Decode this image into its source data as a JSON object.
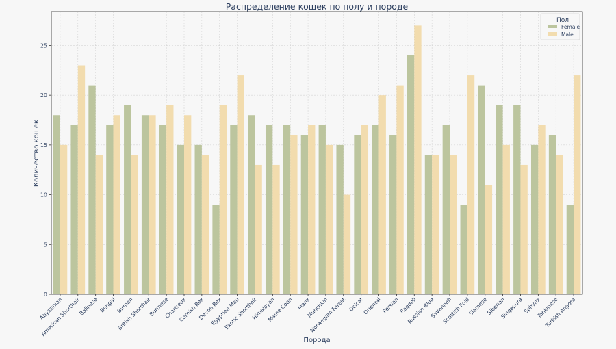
{
  "chart_data": {
    "type": "bar",
    "title": "Распределение кошек по полу и породе",
    "xlabel": "Порода",
    "ylabel": "Количество кошек",
    "ylim": [
      0,
      28.4
    ],
    "yticks": [
      0,
      5,
      10,
      15,
      20,
      25
    ],
    "grid": true,
    "legend": {
      "title": "Пол",
      "placement": "top-right"
    },
    "categories": [
      "Abyssinian",
      "American Shorthair",
      "Balinese",
      "Bengal",
      "Birman",
      "British Shorthair",
      "Burmese",
      "Chartreux",
      "Cornish Rex",
      "Devon Rex",
      "Egyptian Mau",
      "Exotic Shorthair",
      "Himalayan",
      "Maine Coon",
      "Manx",
      "Munchkin",
      "Norwegian Forest",
      "Ocicat",
      "Oriental",
      "Persian",
      "Ragdoll",
      "Russian Blue",
      "Savannah",
      "Scottish Fold",
      "Siamese",
      "Siberian",
      "Singapura",
      "Sphynx",
      "Tonkinese",
      "Turkish Angora"
    ],
    "series": [
      {
        "name": "Female",
        "color": "#bcc59e",
        "values": [
          18,
          17,
          21,
          17,
          19,
          18,
          17,
          15,
          15,
          9,
          17,
          18,
          17,
          17,
          16,
          17,
          15,
          16,
          17,
          16,
          24,
          14,
          17,
          9,
          21,
          19,
          19,
          15,
          16,
          9
        ]
      },
      {
        "name": "Male",
        "color": "#f2dcae",
        "values": [
          15,
          23,
          14,
          18,
          14,
          18,
          19,
          18,
          14,
          19,
          22,
          13,
          13,
          16,
          17,
          15,
          10,
          17,
          20,
          21,
          27,
          14,
          14,
          22,
          11,
          15,
          13,
          17,
          14,
          22
        ]
      }
    ]
  }
}
